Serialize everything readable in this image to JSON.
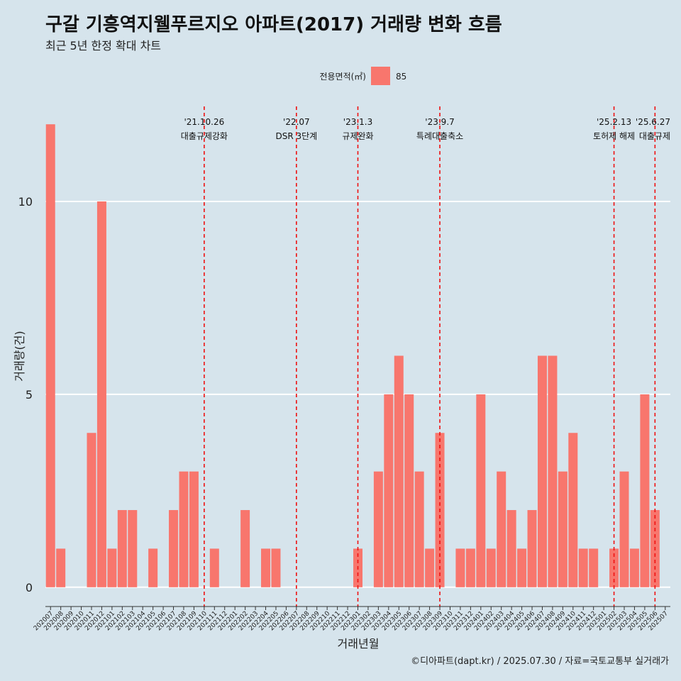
{
  "header": {
    "title": "구갈 기흥역지웰푸르지오 아파트(2017) 거래량 변화 흐름",
    "subtitle": "최근 5년 한정 확대 차트"
  },
  "legend": {
    "title": "전용면적(㎡)",
    "items": [
      "85"
    ]
  },
  "caption": "©디아파트(dapt.kr) / 2025.07.30 / 자료=국토교통부 실거래가",
  "chart_data": {
    "type": "bar",
    "title": "구갈 기흥역지웰푸르지오 아파트(2017) 거래량 변화 흐름",
    "subtitle": "최근 5년 한정 확대 차트",
    "xlabel": "거래년월",
    "ylabel": "거래량(건)",
    "ylim": [
      -0.5,
      12.5
    ],
    "yticks": [
      0,
      5,
      10
    ],
    "grid": true,
    "legend_position": "top",
    "bar_color": "#f8766d",
    "background": "#d6e4ec",
    "categories": [
      "202007",
      "202008",
      "202009",
      "202010",
      "202011",
      "202012",
      "202101",
      "202102",
      "202103",
      "202104",
      "202105",
      "202106",
      "202107",
      "202108",
      "202109",
      "202110",
      "202111",
      "202112",
      "202201",
      "202202",
      "202203",
      "202204",
      "202205",
      "202206",
      "202207",
      "202208",
      "202209",
      "202210",
      "202211",
      "202212",
      "202301",
      "202302",
      "202303",
      "202304",
      "202305",
      "202306",
      "202307",
      "202308",
      "202309",
      "202310",
      "202311",
      "202312",
      "202401",
      "202402",
      "202403",
      "202404",
      "202405",
      "202406",
      "202407",
      "202408",
      "202409",
      "202410",
      "202411",
      "202412",
      "202501",
      "202502",
      "202503",
      "202504",
      "202505",
      "202506",
      "202507"
    ],
    "series": [
      {
        "name": "85",
        "values": [
          12,
          1,
          0,
          0,
          4,
          10,
          1,
          2,
          2,
          0,
          1,
          0,
          2,
          3,
          3,
          0,
          1,
          0,
          0,
          2,
          0,
          1,
          1,
          0,
          0,
          0,
          0,
          0,
          0,
          0,
          1,
          0,
          3,
          5,
          6,
          5,
          3,
          1,
          4,
          0,
          1,
          1,
          5,
          1,
          3,
          2,
          1,
          2,
          6,
          6,
          3,
          4,
          1,
          1,
          0,
          1,
          3,
          1,
          5,
          2,
          0
        ]
      }
    ],
    "events": [
      {
        "date_label": "'21.10.26",
        "label": "대출규제강화",
        "month": "202110"
      },
      {
        "date_label": "'22.07",
        "label": "DSR 3단계",
        "month": "202207"
      },
      {
        "date_label": "'23.1.3",
        "label": "규제완화",
        "month": "202301"
      },
      {
        "date_label": "'23.9.7",
        "label": "특례대출축소",
        "month": "202309"
      },
      {
        "date_label": "'25.2.13",
        "label": "토허제 해제",
        "month": "202502"
      },
      {
        "date_label": "'25.6.27",
        "label": "대출규제",
        "month": "202506"
      }
    ]
  }
}
